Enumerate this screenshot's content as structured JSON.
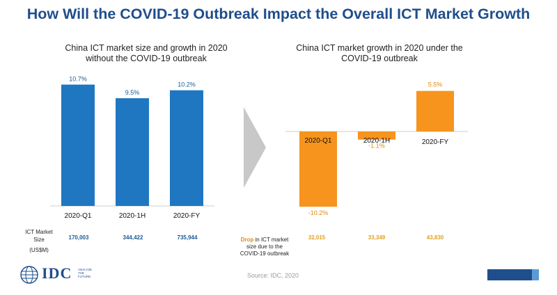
{
  "page": {
    "title": "How Will the COVID-19 Outbreak Impact the Overall ICT Market Growth",
    "source": "Source: IDC, 2020",
    "logo_text": "IDC",
    "logo_tagline": [
      "ANALYZE",
      "THE",
      "FUTURE"
    ]
  },
  "colors": {
    "blue": "#1f77c2",
    "orange": "#f7941d",
    "title": "#1f4e8c"
  },
  "left_panel": {
    "subtitle_line1": "China ICT market size and growth in 2020",
    "subtitle_line2": "without the COVID-19 outbreak",
    "row_label_line1": "ICT Market",
    "row_label_line2": "Size",
    "row_label_line3": "(US$M)",
    "market_size": [
      "170,003",
      "344,422",
      "735,944"
    ]
  },
  "right_panel": {
    "subtitle_line1": "China ICT market growth in 2020 under the",
    "subtitle_line2": "COVID-19 outbreak",
    "drop_word": "Drop",
    "drop_line1_rest": " in ICT market",
    "drop_line2": "size due to the",
    "drop_line3": "COVID-19 outbreak",
    "drop_values": [
      "32,015",
      "33,349",
      "43,830"
    ]
  },
  "chart_data": [
    {
      "type": "bar",
      "title": "China ICT market size and growth in 2020 without the COVID-19 outbreak",
      "categories": [
        "2020-Q1",
        "2020-1H",
        "2020-FY"
      ],
      "values": [
        10.7,
        9.5,
        10.2
      ],
      "data_labels": [
        "10.7%",
        "9.5%",
        "10.2%"
      ],
      "color": "#1f77c2"
    },
    {
      "type": "bar",
      "title": "China ICT market growth in 2020 under the COVID-19 outbreak",
      "categories": [
        "2020-Q1",
        "2020-1H",
        "2020-FY"
      ],
      "values": [
        -10.2,
        -1.1,
        5.5
      ],
      "data_labels": [
        "-10.2%",
        "-1.1%",
        "5.5%"
      ],
      "color": "#f7941d"
    }
  ]
}
